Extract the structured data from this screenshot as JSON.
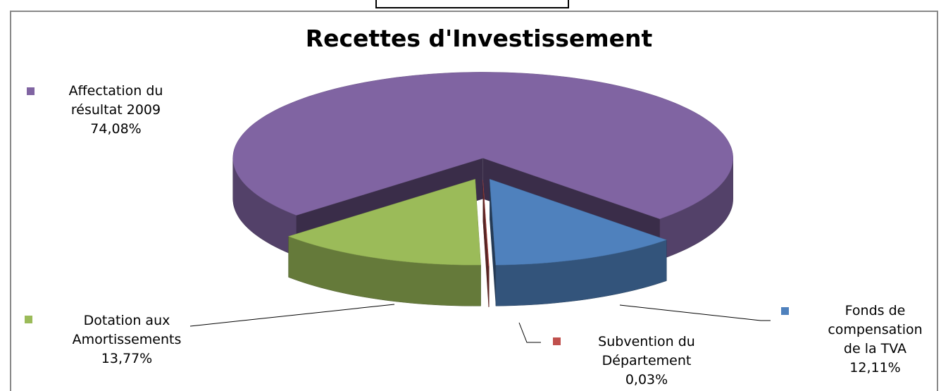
{
  "chart_data": {
    "type": "pie",
    "title": "Recettes d'Investissement",
    "categories": [
      "Fonds de compensation de la TVA",
      "Subvention du Département",
      "Dotation aux Amortissements",
      "Affectation du résultat 2009"
    ],
    "values": [
      12.11,
      0.03,
      13.77,
      74.08
    ],
    "value_labels": [
      "12,11%",
      "0,03%",
      "13,77%",
      "74,08%"
    ],
    "colors": [
      "#4f81bd",
      "#c0504d",
      "#9bbb59",
      "#8064a2"
    ]
  }
}
